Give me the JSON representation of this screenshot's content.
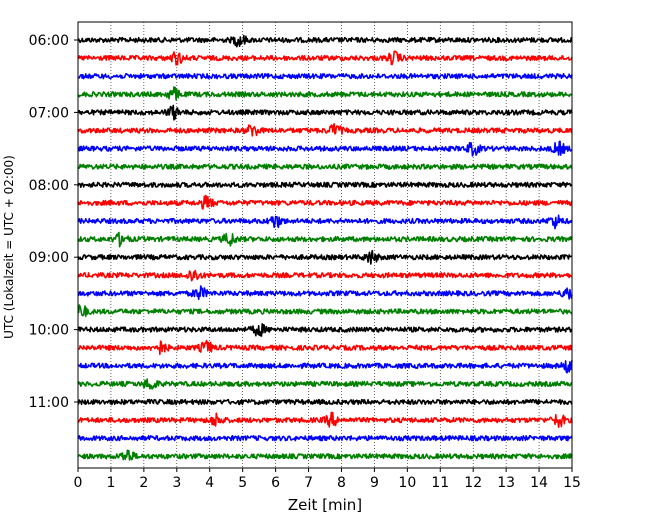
{
  "chart_data": {
    "type": "line",
    "title": "",
    "xlabel": "Zeit  [min]",
    "ylabel": "UTC (Lokalzeit = UTC + 02:00)",
    "xlim": [
      0,
      15
    ],
    "x_ticks": [
      "0",
      "1",
      "2",
      "3",
      "4",
      "5",
      "6",
      "7",
      "8",
      "9",
      "10",
      "11",
      "12",
      "13",
      "14",
      "15"
    ],
    "y_tick_labels": [
      "06:00",
      "07:00",
      "08:00",
      "09:00",
      "10:00",
      "11:00"
    ],
    "grid": "vertical dotted",
    "legend": "none",
    "trace_interval_min": 15,
    "trace_start": "06:00",
    "trace_count": 24,
    "trace_colors": [
      "#000000",
      "#ff0000",
      "#0000ff",
      "#008000"
    ],
    "events_min": [
      [
        4.9
      ],
      [
        3.0,
        9.6
      ],
      [],
      [
        2.9
      ],
      [
        2.9
      ],
      [
        5.3,
        7.8
      ],
      [
        12.0,
        14.6
      ],
      [],
      [],
      [
        3.9
      ],
      [
        6.0,
        14.5
      ],
      [
        1.3,
        4.6
      ],
      [
        8.9
      ],
      [
        3.5
      ],
      [
        3.7,
        14.9
      ],
      [
        0.1
      ],
      [
        5.5
      ],
      [
        2.5,
        3.9
      ],
      [
        14.9
      ],
      [
        2.2
      ],
      [],
      [
        4.2,
        7.7,
        14.6
      ],
      [],
      [
        1.5
      ]
    ]
  }
}
